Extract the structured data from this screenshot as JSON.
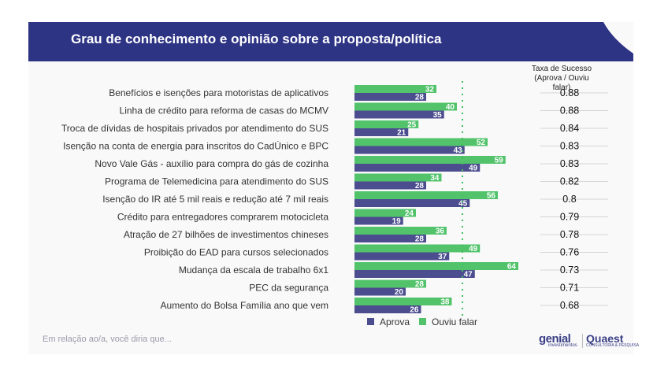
{
  "header": {
    "title": "Grau de conhecimento e opinião sobre a proposta/política"
  },
  "rate_header": {
    "line1": "Taxa de Sucesso",
    "line2": "(Aprova / Ouviu falar)"
  },
  "footnote": "Em relação ao/a, você diria que...",
  "logos": {
    "genial_main": "genial",
    "genial_sub": "investimentos",
    "quaest_main": "Quaest",
    "quaest_sub": "CONSULTORIA & PESQUISA"
  },
  "colors": {
    "header": "#2e3484",
    "aprova": "#4b4d8f",
    "ouviu": "#52c36b",
    "dotted": "#3fbf5a"
  },
  "chart_data": {
    "type": "bar",
    "orientation": "horizontal",
    "categories": [
      "Benefícios e isenções para motoristas de aplicativos",
      "Linha de crédito para reforma de casas do MCMV",
      "Troca de dívidas de hospitais privados por atendimento do SUS",
      "Isenção na conta de energia para inscritos do CadÚnico e BPC",
      "Novo Vale Gás - auxílio para compra do gás de cozinha",
      "Programa de Telemedicina para atendimento do SUS",
      "Isenção do IR até 5 mil reais e redução até 7 mil reais",
      "Crédito para entregadores comprarem motocicleta",
      "Atração de 27 bilhões de investimentos chineses",
      "Proibição do EAD para cursos selecionados",
      "Mudança da escala de trabalho 6x1",
      "PEC da segurança",
      "Aumento do Bolsa Família ano que vem"
    ],
    "series": [
      {
        "name": "Ouviu falar",
        "values": [
          32,
          40,
          25,
          52,
          59,
          34,
          56,
          24,
          36,
          49,
          64,
          28,
          38
        ]
      },
      {
        "name": "Aprova",
        "values": [
          28,
          35,
          21,
          43,
          49,
          28,
          45,
          19,
          28,
          37,
          47,
          20,
          26
        ]
      }
    ],
    "success_rate": [
      "0.88",
      "0.88",
      "0.84",
      "0.83",
      "0.83",
      "0.82",
      "0.8",
      "0.79",
      "0.78",
      "0.76",
      "0.73",
      "0.71",
      "0.68"
    ],
    "xlim": [
      0,
      70
    ],
    "legend_position": "bottom"
  }
}
